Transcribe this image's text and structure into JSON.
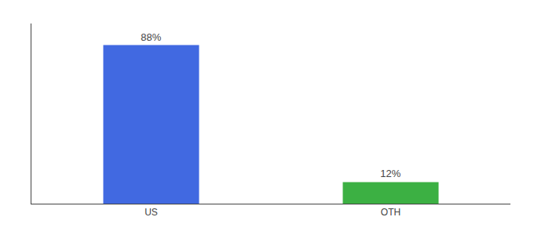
{
  "chart_data": {
    "type": "bar",
    "categories": [
      "US",
      "OTH"
    ],
    "values": [
      88,
      12
    ],
    "value_labels": [
      "88%",
      "12%"
    ],
    "colors": [
      "#4169e1",
      "#3cb043"
    ],
    "ylim": [
      0,
      100
    ],
    "grid": false,
    "data_labels": true,
    "tick_labels": "x"
  }
}
